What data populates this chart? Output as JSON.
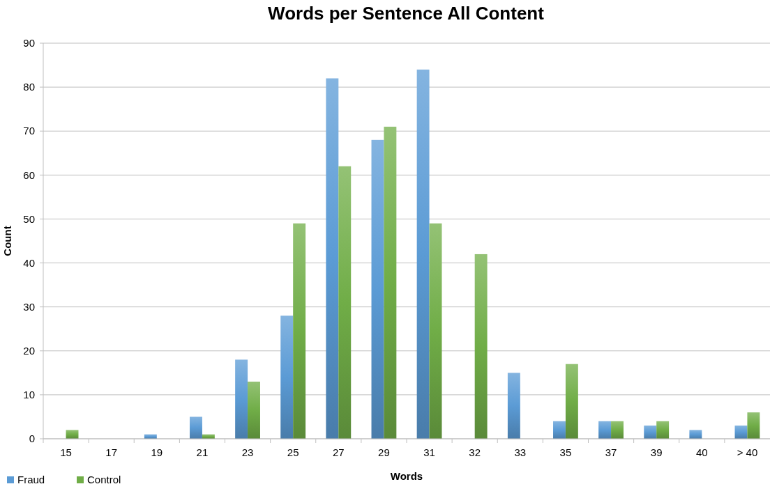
{
  "chart_data": {
    "type": "bar",
    "title": "Words per Sentence All Content",
    "xlabel": "Words",
    "ylabel": "Count",
    "categories": [
      "15",
      "17",
      "19",
      "21",
      "23",
      "25",
      "27",
      "29",
      "31",
      "32",
      "33",
      "35",
      "37",
      "39",
      "40",
      "> 40"
    ],
    "series": [
      {
        "name": "Fraud",
        "color": "#5b9bd5",
        "values": [
          0,
          0,
          1,
          5,
          18,
          28,
          82,
          68,
          84,
          0,
          15,
          4,
          4,
          3,
          2,
          3
        ]
      },
      {
        "name": "Control",
        "color": "#70ad47",
        "values": [
          2,
          0,
          0,
          1,
          13,
          49,
          62,
          71,
          49,
          42,
          0,
          17,
          4,
          4,
          0,
          6
        ]
      }
    ],
    "ylim": [
      0,
      90
    ],
    "yticks": [
      0,
      10,
      20,
      30,
      40,
      50,
      60,
      70,
      80,
      90
    ],
    "grid": "y",
    "legend": "bottom left"
  }
}
